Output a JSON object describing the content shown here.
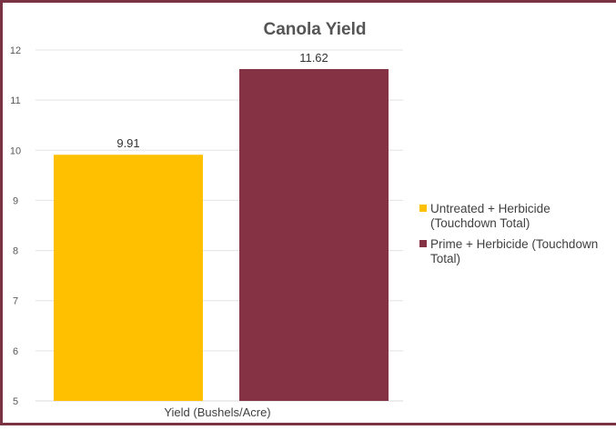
{
  "chart_data": {
    "type": "bar",
    "title": "Canola Yield",
    "categories": [
      "Yield (Bushels/Acre)"
    ],
    "series": [
      {
        "name": "Untreated + Herbicide (Touchdown Total)",
        "values": [
          9.91
        ],
        "color": "#ffc000"
      },
      {
        "name": "Prime + Herbicide (Touchdown Total)",
        "values": [
          11.62
        ],
        "color": "#843244"
      }
    ],
    "xlabel": "Yield (Bushels/Acre)",
    "ylabel": "",
    "ylim": [
      5,
      12
    ],
    "yticks": [
      "5",
      "6",
      "7",
      "8",
      "9",
      "10",
      "11",
      "12"
    ],
    "data_labels": [
      "9.91",
      "11.62"
    ],
    "legend": {
      "position": "right",
      "entries": [
        {
          "lines": [
            "Untreated + Herbicide",
            "(Touchdown Total)"
          ]
        },
        {
          "lines": [
            "Prime + Herbicide (Touchdown",
            "Total)"
          ]
        }
      ]
    },
    "grid": true
  }
}
